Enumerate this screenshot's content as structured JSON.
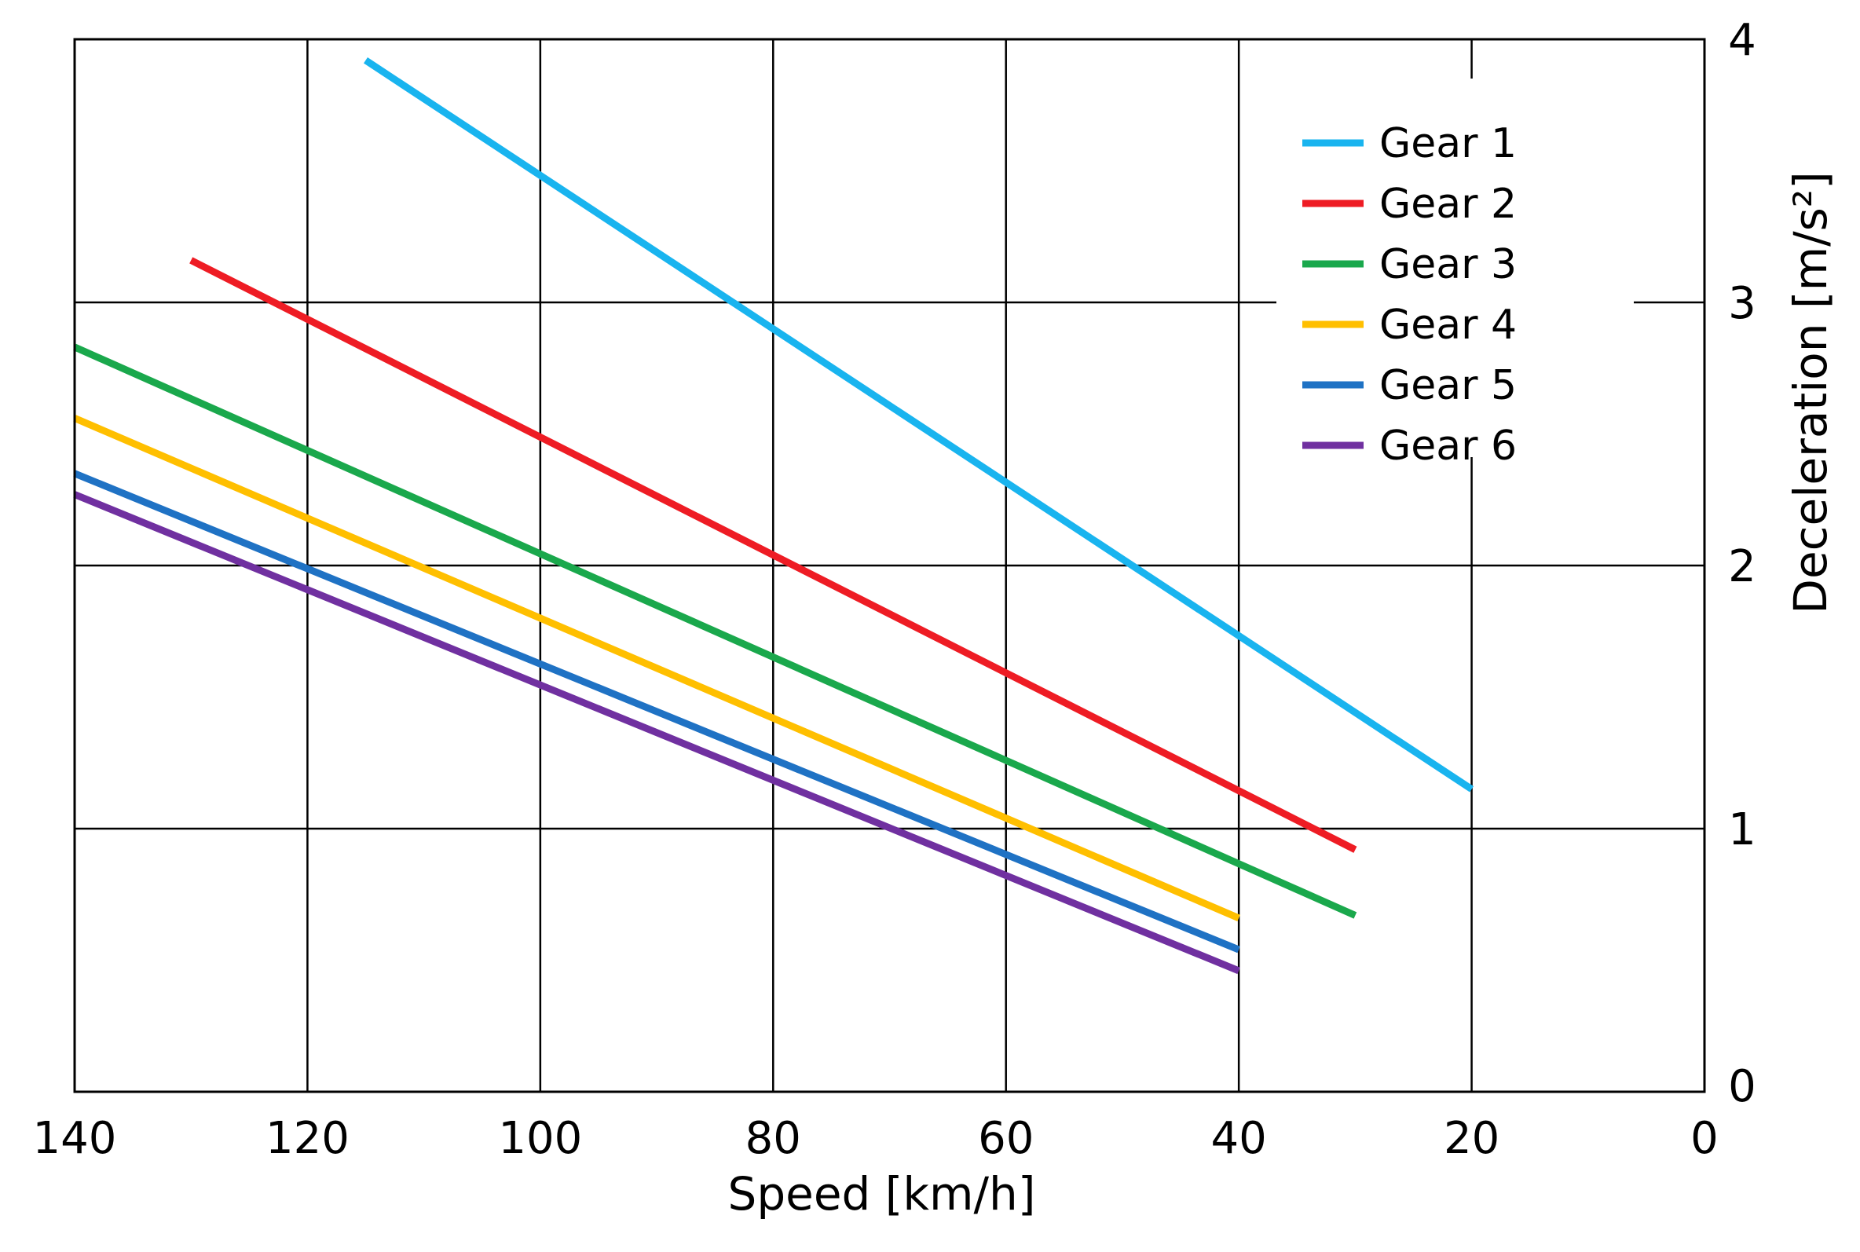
{
  "chart_data": {
    "type": "line",
    "title": "",
    "xlabel": "Speed [km/h]",
    "ylabel": "Deceleration [m/s²]",
    "xlim": [
      140,
      0
    ],
    "ylim": [
      0,
      4
    ],
    "x_reversed": true,
    "y_axis_side": "right",
    "grid": true,
    "legend_position": "top-right",
    "xticks": [
      140,
      120,
      100,
      80,
      60,
      40,
      20,
      0
    ],
    "yticks": [
      0,
      1,
      2,
      3,
      4
    ],
    "series": [
      {
        "name": "Gear 1",
        "color": "#19b4ef",
        "x": [
          115,
          20
        ],
        "y": [
          3.92,
          1.15
        ]
      },
      {
        "name": "Gear 2",
        "color": "#ee1c24",
        "x": [
          130,
          30
        ],
        "y": [
          3.16,
          0.92
        ]
      },
      {
        "name": "Gear 3",
        "color": "#1aa84c",
        "x": [
          140,
          30
        ],
        "y": [
          2.83,
          0.67
        ]
      },
      {
        "name": "Gear 4",
        "color": "#ffbf00",
        "x": [
          140,
          40
        ],
        "y": [
          2.56,
          0.66
        ]
      },
      {
        "name": "Gear 5",
        "color": "#1f72c4",
        "x": [
          140,
          40
        ],
        "y": [
          2.35,
          0.54
        ]
      },
      {
        "name": "Gear 6",
        "color": "#7030a0",
        "x": [
          140,
          40
        ],
        "y": [
          2.27,
          0.46
        ]
      }
    ]
  }
}
